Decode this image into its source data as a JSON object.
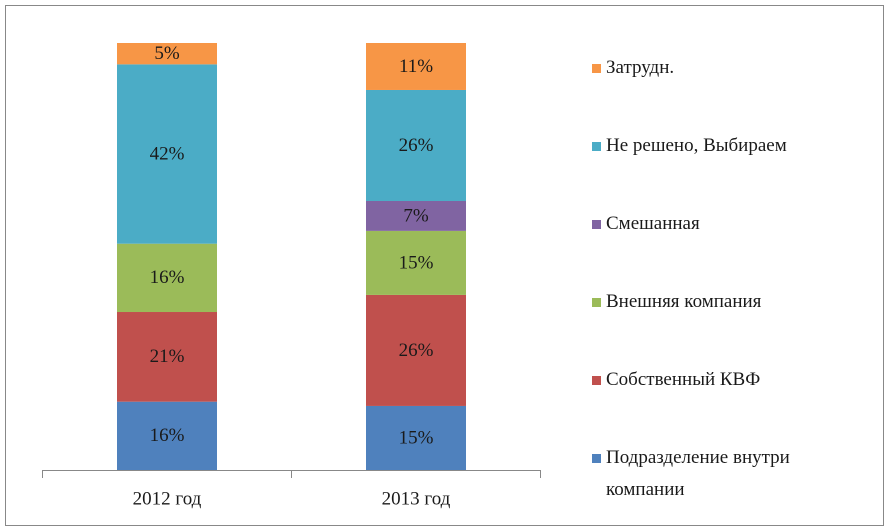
{
  "chart_data": {
    "type": "stacked_bar",
    "categories": [
      "2012 год",
      "2013 год"
    ],
    "series": [
      {
        "name": "Подразделение внутри компании",
        "color": "#4f81bd",
        "values": [
          16,
          15
        ],
        "value_labels": [
          "16%",
          "15%"
        ]
      },
      {
        "name": "Собственный КВФ",
        "color": "#c0504d",
        "values": [
          21,
          26
        ],
        "value_labels": [
          "21%",
          "26%"
        ]
      },
      {
        "name": "Внешняя компания",
        "color": "#9bbb59",
        "values": [
          16,
          15
        ],
        "value_labels": [
          "16%",
          "15%"
        ]
      },
      {
        "name": "Смешанная",
        "color": "#8064a2",
        "values": [
          null,
          7
        ],
        "value_labels": [
          null,
          "7%"
        ]
      },
      {
        "name": "Не решено, Выбираем",
        "color": "#4bacc6",
        "values": [
          42,
          26
        ],
        "value_labels": [
          "42%",
          "26%"
        ]
      },
      {
        "name": "Затрудн.",
        "color": "#f79646",
        "values": [
          5,
          11
        ],
        "value_labels": [
          "5%",
          "11%"
        ]
      }
    ]
  }
}
